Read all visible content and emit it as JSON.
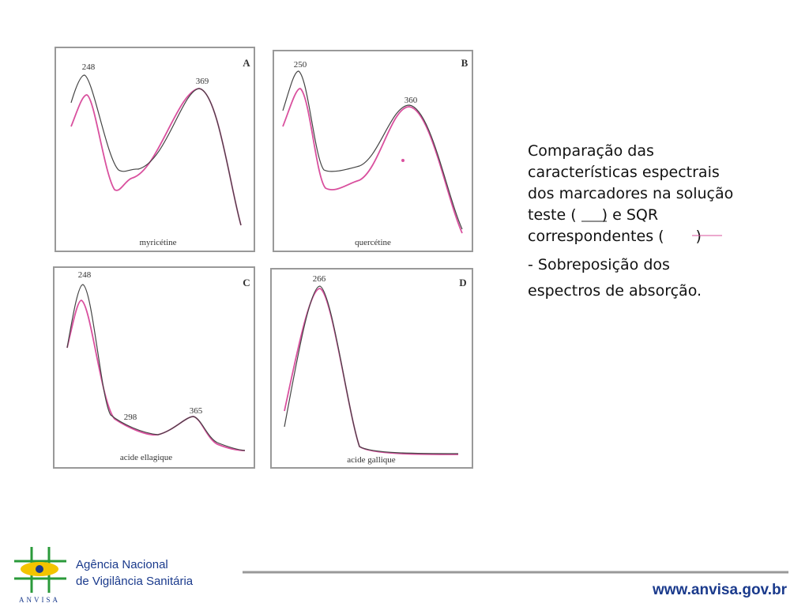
{
  "panels": [
    {
      "letter": "A",
      "peaks": [
        "248",
        "369"
      ],
      "compound": "myricétine"
    },
    {
      "letter": "B",
      "peaks": [
        "250",
        "360"
      ],
      "compound": "quercétine"
    },
    {
      "letter": "C",
      "peaks": [
        "248",
        "298",
        "365"
      ],
      "compound": "acide ellagique"
    },
    {
      "letter": "D",
      "peaks": [
        "266"
      ],
      "compound": "acide gallique"
    }
  ],
  "caption": {
    "lines": [
      "Comparação das",
      "características espectrais",
      "dos marcadores na solução"
    ],
    "line4": {
      "before": "teste (",
      "after": ") e SQR"
    },
    "line5": {
      "before": "correspondentes (",
      "after": ")"
    },
    "line6": " - Sobreposição dos",
    "line7": "espectros de absorção."
  },
  "footer": {
    "agency_line1": "Agência Nacional",
    "agency_line2": "de Vigilância Sanitária",
    "logo_text": "ANVISA",
    "url": "www.anvisa.gov.br"
  }
}
